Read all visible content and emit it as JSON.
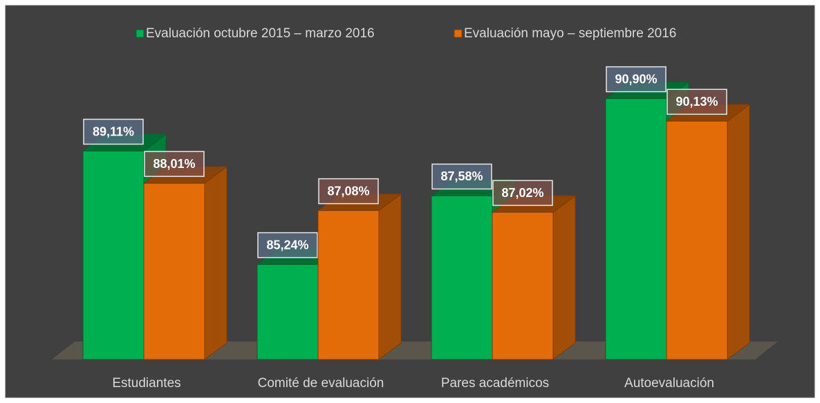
{
  "chart_data": {
    "type": "bar3d",
    "categories": [
      "Estudiantes",
      "Comité de evaluación",
      "Pares académicos",
      "Autoevaluación"
    ],
    "series": [
      {
        "name": "Evaluación octubre 2015 – marzo 2016",
        "color": "#00b050",
        "values": [
          89.11,
          85.24,
          87.58,
          90.9
        ],
        "value_labels": [
          "89,11%",
          "85,24%",
          "87,58%",
          "90,90%"
        ]
      },
      {
        "name": "Evaluación mayo – septiembre 2016",
        "color": "#e36c09",
        "values": [
          88.01,
          87.08,
          87.02,
          90.13
        ],
        "value_labels": [
          "88,01%",
          "87,08%",
          "87,02%",
          "90,13%"
        ]
      }
    ],
    "ylim": [
      82,
      92
    ]
  }
}
